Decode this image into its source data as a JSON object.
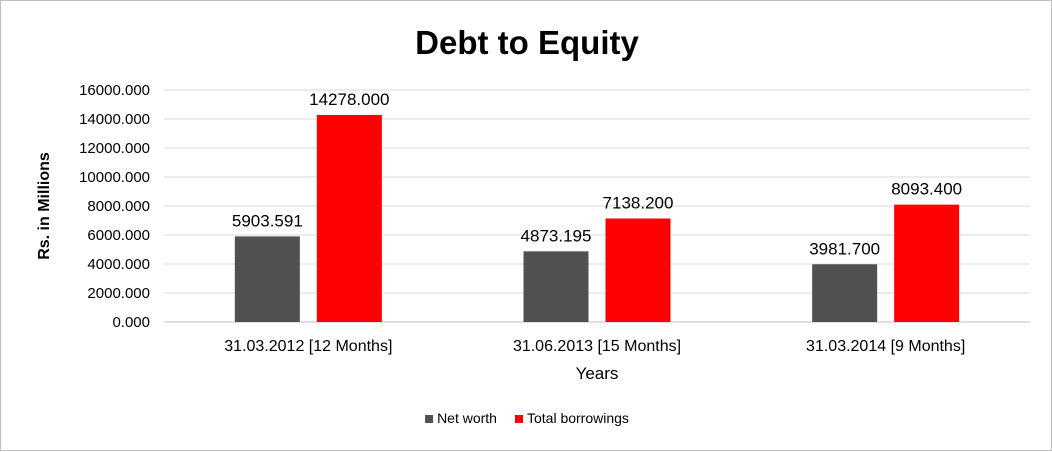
{
  "chart_data": {
    "type": "bar",
    "title": "Debt to Equity",
    "xlabel": "Years",
    "ylabel": "Rs. in Millions",
    "categories": [
      "31.03.2012 [12 Months]",
      "31.06.2013 [15 Months]",
      "31.03.2014 [9 Months]"
    ],
    "series": [
      {
        "name": "Net worth",
        "values": [
          5903.591,
          4873.195,
          3981.7
        ],
        "labels": [
          "5903.591",
          "4873.195",
          "3981.700"
        ],
        "color": "#505050"
      },
      {
        "name": "Total borrowings",
        "values": [
          14278.0,
          7138.2,
          8093.4
        ],
        "labels": [
          "14278.000",
          "7138.200",
          "8093.400"
        ],
        "color": "#ff0000"
      }
    ],
    "ylim": [
      0,
      16000
    ],
    "yticks": [
      "0.000",
      "2000.000",
      "4000.000",
      "6000.000",
      "8000.000",
      "10000.000",
      "12000.000",
      "14000.000",
      "16000.000"
    ],
    "grid": true,
    "legend_position": "bottom"
  }
}
